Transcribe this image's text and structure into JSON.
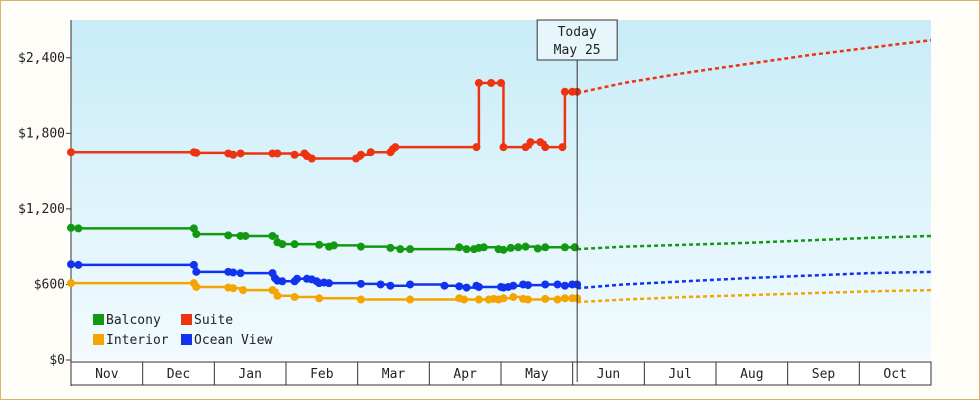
{
  "chart_data": {
    "type": "line",
    "title": "",
    "xlabel": "",
    "ylabel": "",
    "ylim": [
      0,
      2700
    ],
    "y_ticks": [
      "$0",
      "$600",
      "$1,200",
      "$1,800",
      "$2,400"
    ],
    "y_tick_values": [
      0,
      600,
      1200,
      1800,
      2400
    ],
    "months": [
      "Nov",
      "Dec",
      "Jan",
      "Feb",
      "Mar",
      "Apr",
      "May",
      "Jun",
      "Jul",
      "Aug",
      "Sep",
      "Oct"
    ],
    "today": {
      "line1": "Today",
      "line2": "May 25",
      "day": 206
    },
    "x_range_days": [
      0,
      350
    ],
    "grid": false,
    "legend_placement": "bottom-left",
    "series": [
      {
        "name": "Balcony",
        "color": "#119911",
        "history": [
          [
            0,
            1050
          ],
          [
            3,
            1045
          ],
          [
            50,
            1045
          ],
          [
            51,
            1000
          ],
          [
            64,
            990
          ],
          [
            69,
            985
          ],
          [
            71,
            985
          ],
          [
            82,
            985
          ],
          [
            84,
            935
          ],
          [
            86,
            920
          ],
          [
            91,
            920
          ],
          [
            101,
            915
          ],
          [
            105,
            900
          ],
          [
            107,
            910
          ],
          [
            118,
            900
          ],
          [
            130,
            890
          ],
          [
            134,
            880
          ],
          [
            138,
            880
          ],
          [
            158,
            895
          ],
          [
            161,
            880
          ],
          [
            164,
            880
          ],
          [
            166,
            890
          ],
          [
            168,
            895
          ],
          [
            174,
            880
          ],
          [
            176,
            875
          ],
          [
            179,
            890
          ],
          [
            182,
            895
          ],
          [
            185,
            900
          ],
          [
            190,
            885
          ],
          [
            193,
            895
          ],
          [
            201,
            895
          ],
          [
            205,
            895
          ]
        ],
        "forecast": [
          [
            206,
            880
          ],
          [
            225,
            900
          ],
          [
            250,
            915
          ],
          [
            275,
            930
          ],
          [
            300,
            950
          ],
          [
            325,
            970
          ],
          [
            350,
            985
          ]
        ]
      },
      {
        "name": "Suite",
        "color": "#ee3311",
        "history": [
          [
            0,
            1650
          ],
          [
            50,
            1650
          ],
          [
            51,
            1645
          ],
          [
            64,
            1640
          ],
          [
            66,
            1630
          ],
          [
            69,
            1640
          ],
          [
            82,
            1640
          ],
          [
            84,
            1640
          ],
          [
            91,
            1630
          ],
          [
            95,
            1640
          ],
          [
            96,
            1620
          ],
          [
            98,
            1600
          ],
          [
            116,
            1600
          ],
          [
            118,
            1630
          ],
          [
            122,
            1650
          ],
          [
            130,
            1650
          ],
          [
            131,
            1675
          ],
          [
            132,
            1690
          ],
          [
            165,
            1690
          ],
          [
            166,
            2200
          ],
          [
            171,
            2200
          ],
          [
            175,
            2200
          ],
          [
            176,
            1690
          ],
          [
            185,
            1690
          ],
          [
            187,
            1730
          ],
          [
            191,
            1730
          ],
          [
            193,
            1690
          ],
          [
            200,
            1690
          ],
          [
            201,
            2130
          ],
          [
            204,
            2130
          ],
          [
            206,
            2130
          ]
        ],
        "forecast": [
          [
            206,
            2120
          ],
          [
            225,
            2200
          ],
          [
            250,
            2280
          ],
          [
            275,
            2350
          ],
          [
            300,
            2420
          ],
          [
            325,
            2480
          ],
          [
            350,
            2540
          ]
        ]
      },
      {
        "name": "Interior",
        "color": "#f5a500",
        "history": [
          [
            0,
            610
          ],
          [
            50,
            610
          ],
          [
            51,
            580
          ],
          [
            64,
            575
          ],
          [
            66,
            570
          ],
          [
            70,
            555
          ],
          [
            82,
            555
          ],
          [
            84,
            510
          ],
          [
            91,
            500
          ],
          [
            101,
            490
          ],
          [
            118,
            480
          ],
          [
            138,
            480
          ],
          [
            158,
            490
          ],
          [
            160,
            480
          ],
          [
            166,
            480
          ],
          [
            170,
            480
          ],
          [
            172,
            485
          ],
          [
            174,
            480
          ],
          [
            176,
            490
          ],
          [
            180,
            500
          ],
          [
            184,
            485
          ],
          [
            186,
            480
          ],
          [
            193,
            485
          ],
          [
            198,
            480
          ],
          [
            201,
            490
          ],
          [
            204,
            490
          ],
          [
            206,
            490
          ]
        ],
        "forecast": [
          [
            206,
            460
          ],
          [
            225,
            480
          ],
          [
            250,
            500
          ],
          [
            275,
            515
          ],
          [
            300,
            530
          ],
          [
            325,
            545
          ],
          [
            350,
            555
          ]
        ]
      },
      {
        "name": "Ocean View",
        "color": "#1133ee",
        "history": [
          [
            0,
            760
          ],
          [
            3,
            755
          ],
          [
            50,
            755
          ],
          [
            51,
            700
          ],
          [
            64,
            700
          ],
          [
            66,
            695
          ],
          [
            69,
            690
          ],
          [
            82,
            690
          ],
          [
            83,
            650
          ],
          [
            84,
            630
          ],
          [
            86,
            625
          ],
          [
            91,
            625
          ],
          [
            92,
            645
          ],
          [
            96,
            645
          ],
          [
            98,
            640
          ],
          [
            100,
            625
          ],
          [
            101,
            610
          ],
          [
            103,
            615
          ],
          [
            105,
            610
          ],
          [
            118,
            605
          ],
          [
            126,
            600
          ],
          [
            130,
            590
          ],
          [
            138,
            600
          ],
          [
            152,
            590
          ],
          [
            158,
            585
          ],
          [
            161,
            575
          ],
          [
            165,
            590
          ],
          [
            166,
            580
          ],
          [
            175,
            580
          ],
          [
            176,
            575
          ],
          [
            178,
            580
          ],
          [
            180,
            590
          ],
          [
            184,
            600
          ],
          [
            186,
            595
          ],
          [
            193,
            600
          ],
          [
            198,
            600
          ],
          [
            201,
            590
          ],
          [
            204,
            600
          ],
          [
            206,
            600
          ]
        ],
        "forecast": [
          [
            206,
            570
          ],
          [
            225,
            600
          ],
          [
            250,
            625
          ],
          [
            275,
            650
          ],
          [
            300,
            670
          ],
          [
            325,
            690
          ],
          [
            350,
            700
          ]
        ]
      }
    ]
  }
}
